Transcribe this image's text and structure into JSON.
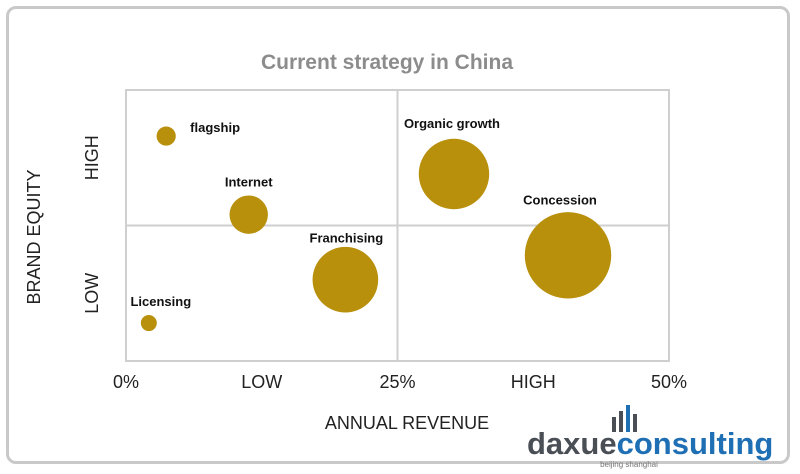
{
  "chart_data": {
    "type": "scatter",
    "title": "Current strategy in China",
    "xlabel": "ANNUAL REVENUE",
    "ylabel": "BRAND EQUITY",
    "x_ticks": [
      "0%",
      "LOW",
      "25%",
      "HIGH",
      "50%"
    ],
    "y_ticks": [
      "LOW",
      "HIGH"
    ],
    "xlim": [
      0,
      50
    ],
    "ylim": [
      0,
      10
    ],
    "grid": true,
    "bubble_color": "#b8900c",
    "points": [
      {
        "label": "flagship",
        "x": 3.7,
        "y": 8.3,
        "size": 1.2
      },
      {
        "label": "Internet",
        "x": 11.3,
        "y": 5.4,
        "size": 2.4
      },
      {
        "label": "Organic growth",
        "x": 30.2,
        "y": 6.9,
        "size": 4.4
      },
      {
        "label": "Concession",
        "x": 40.7,
        "y": 3.9,
        "size": 5.4
      },
      {
        "label": "Franchising",
        "x": 20.2,
        "y": 3.0,
        "size": 4.1
      },
      {
        "label": "Licensing",
        "x": 2.1,
        "y": 1.4,
        "size": 1.0
      }
    ]
  },
  "branding": {
    "name_part1": "daxue",
    "name_part2": "consulting",
    "tagline": "beijing shanghai",
    "color1": "#4a4f55",
    "color2": "#1f6fb4"
  }
}
